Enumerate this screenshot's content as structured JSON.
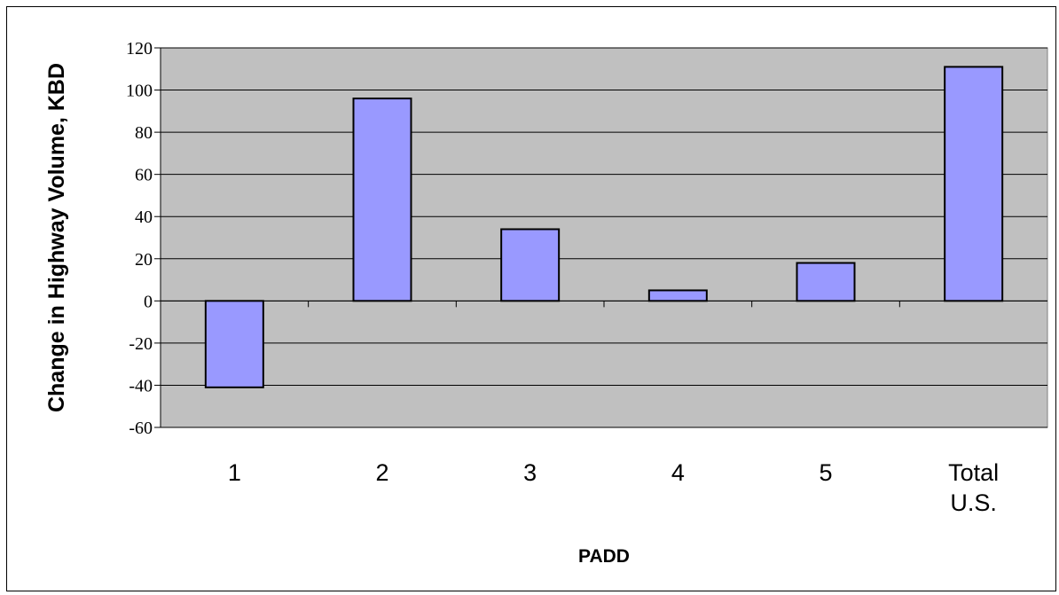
{
  "chart_data": {
    "type": "bar",
    "title": "",
    "xlabel": "PADD",
    "ylabel": "Change in Highway Volume, KBD",
    "categories": [
      [
        "1"
      ],
      [
        "2"
      ],
      [
        "3"
      ],
      [
        "4"
      ],
      [
        "5"
      ],
      [
        "Total",
        "U.S."
      ]
    ],
    "values": [
      -41,
      96,
      34,
      5,
      18,
      111
    ],
    "ylim": [
      -60,
      120
    ],
    "yticks": [
      -60,
      -40,
      -20,
      0,
      20,
      40,
      60,
      80,
      100,
      120
    ],
    "grid": true,
    "legend": "none",
    "colors": {
      "bar_fill": "#9999ff",
      "bar_stroke": "#000000",
      "plot_background": "#c0c0c0",
      "gridline": "#000000"
    }
  }
}
